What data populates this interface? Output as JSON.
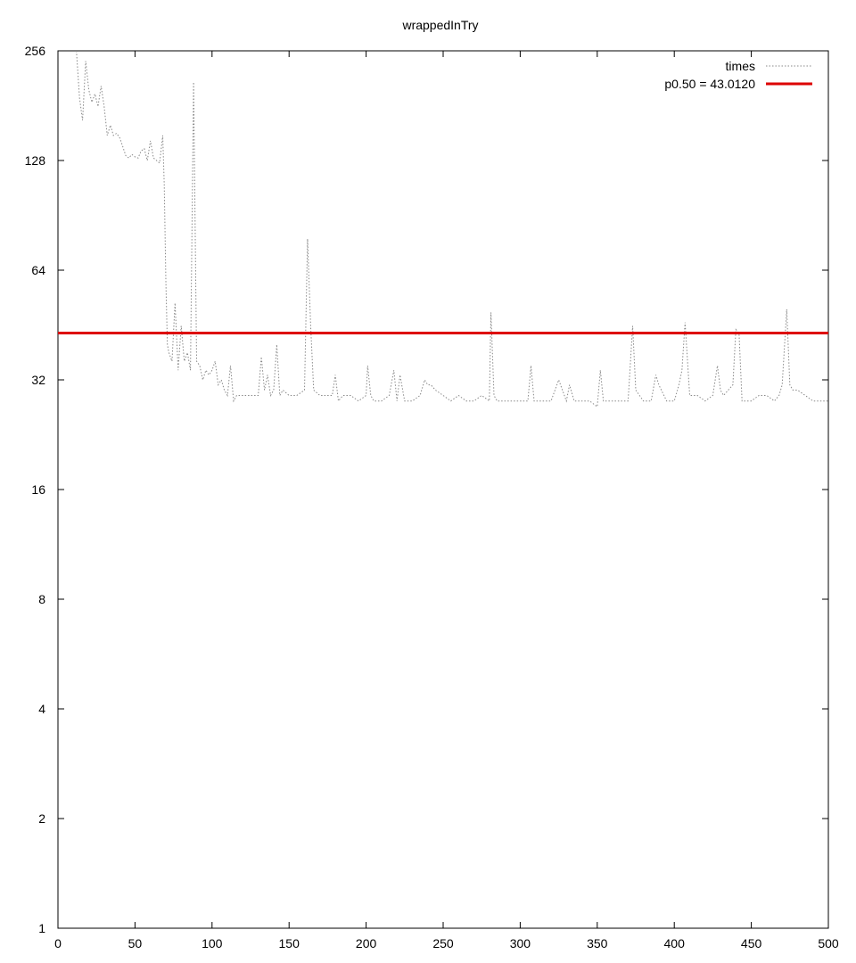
{
  "chart_data": {
    "type": "line",
    "title": "wrappedInTry",
    "xlabel": "",
    "ylabel": "",
    "xlim": [
      0,
      500
    ],
    "ylim": [
      1,
      256
    ],
    "yscale": "log2",
    "grid": false,
    "legend_position": "top-right",
    "x_ticks": [
      "0",
      "50",
      "100",
      "150",
      "200",
      "250",
      "300",
      "350",
      "400",
      "450",
      "500"
    ],
    "y_ticks": [
      "1",
      "2",
      "4",
      "8",
      "16",
      "32",
      "64",
      "128",
      "256"
    ],
    "colors": {
      "times": "#888888",
      "median": "#dd0000"
    },
    "series": [
      {
        "name": "times",
        "style": "dotted",
        "points": [
          [
            12,
            256
          ],
          [
            14,
            190
          ],
          [
            16,
            165
          ],
          [
            18,
            240
          ],
          [
            20,
            200
          ],
          [
            22,
            185
          ],
          [
            24,
            195
          ],
          [
            26,
            180
          ],
          [
            28,
            205
          ],
          [
            30,
            180
          ],
          [
            32,
            150
          ],
          [
            34,
            160
          ],
          [
            36,
            150
          ],
          [
            38,
            152
          ],
          [
            40,
            148
          ],
          [
            42,
            140
          ],
          [
            44,
            132
          ],
          [
            46,
            130
          ],
          [
            48,
            133
          ],
          [
            50,
            131
          ],
          [
            52,
            130
          ],
          [
            54,
            136
          ],
          [
            56,
            138
          ],
          [
            58,
            128
          ],
          [
            60,
            145
          ],
          [
            62,
            130
          ],
          [
            64,
            128
          ],
          [
            66,
            126
          ],
          [
            68,
            150
          ],
          [
            69,
            110
          ],
          [
            70,
            60
          ],
          [
            71,
            40
          ],
          [
            72,
            38
          ],
          [
            74,
            36
          ],
          [
            76,
            52
          ],
          [
            78,
            34
          ],
          [
            80,
            45
          ],
          [
            82,
            36
          ],
          [
            84,
            38
          ],
          [
            86,
            34
          ],
          [
            88,
            210
          ],
          [
            90,
            36
          ],
          [
            92,
            35
          ],
          [
            94,
            32
          ],
          [
            96,
            34
          ],
          [
            98,
            33
          ],
          [
            100,
            34
          ],
          [
            102,
            36
          ],
          [
            104,
            31
          ],
          [
            106,
            32
          ],
          [
            108,
            30
          ],
          [
            110,
            29
          ],
          [
            112,
            35
          ],
          [
            114,
            28
          ],
          [
            116,
            29
          ],
          [
            118,
            29
          ],
          [
            120,
            29
          ],
          [
            125,
            29
          ],
          [
            130,
            29
          ],
          [
            132,
            37
          ],
          [
            134,
            30
          ],
          [
            136,
            33
          ],
          [
            138,
            29
          ],
          [
            140,
            30
          ],
          [
            142,
            40
          ],
          [
            144,
            29
          ],
          [
            146,
            30
          ],
          [
            150,
            29
          ],
          [
            155,
            29
          ],
          [
            160,
            30
          ],
          [
            162,
            78
          ],
          [
            164,
            45
          ],
          [
            166,
            30
          ],
          [
            170,
            29
          ],
          [
            175,
            29
          ],
          [
            178,
            29
          ],
          [
            180,
            33
          ],
          [
            182,
            28
          ],
          [
            185,
            29
          ],
          [
            190,
            29
          ],
          [
            195,
            28
          ],
          [
            200,
            29
          ],
          [
            201,
            35
          ],
          [
            203,
            29
          ],
          [
            205,
            28
          ],
          [
            210,
            28
          ],
          [
            215,
            29
          ],
          [
            218,
            34
          ],
          [
            220,
            28
          ],
          [
            222,
            33
          ],
          [
            225,
            28
          ],
          [
            230,
            28
          ],
          [
            235,
            29
          ],
          [
            238,
            32
          ],
          [
            240,
            31
          ],
          [
            242,
            31
          ],
          [
            245,
            30
          ],
          [
            250,
            29
          ],
          [
            255,
            28
          ],
          [
            260,
            29
          ],
          [
            265,
            28
          ],
          [
            270,
            28
          ],
          [
            275,
            29
          ],
          [
            280,
            28
          ],
          [
            281,
            49
          ],
          [
            283,
            29
          ],
          [
            285,
            28
          ],
          [
            290,
            28
          ],
          [
            295,
            28
          ],
          [
            300,
            28
          ],
          [
            305,
            28
          ],
          [
            307,
            35
          ],
          [
            309,
            28
          ],
          [
            315,
            28
          ],
          [
            320,
            28
          ],
          [
            325,
            32
          ],
          [
            330,
            28
          ],
          [
            332,
            31
          ],
          [
            335,
            28
          ],
          [
            340,
            28
          ],
          [
            345,
            28
          ],
          [
            350,
            27
          ],
          [
            352,
            34
          ],
          [
            354,
            28
          ],
          [
            360,
            28
          ],
          [
            365,
            28
          ],
          [
            370,
            28
          ],
          [
            373,
            45
          ],
          [
            375,
            30
          ],
          [
            380,
            28
          ],
          [
            385,
            28
          ],
          [
            388,
            33
          ],
          [
            390,
            31
          ],
          [
            395,
            28
          ],
          [
            400,
            28
          ],
          [
            403,
            31
          ],
          [
            405,
            34
          ],
          [
            407,
            46
          ],
          [
            410,
            29
          ],
          [
            415,
            29
          ],
          [
            420,
            28
          ],
          [
            425,
            29
          ],
          [
            428,
            35
          ],
          [
            430,
            30
          ],
          [
            432,
            29
          ],
          [
            435,
            30
          ],
          [
            438,
            31
          ],
          [
            440,
            44
          ],
          [
            442,
            43
          ],
          [
            444,
            28
          ],
          [
            450,
            28
          ],
          [
            455,
            29
          ],
          [
            460,
            29
          ],
          [
            465,
            28
          ],
          [
            468,
            29
          ],
          [
            470,
            31
          ],
          [
            473,
            50
          ],
          [
            475,
            31
          ],
          [
            477,
            30
          ],
          [
            480,
            30
          ],
          [
            485,
            29
          ],
          [
            490,
            28
          ],
          [
            495,
            28
          ],
          [
            500,
            28
          ]
        ]
      },
      {
        "name": "p0.50 = 43.0120",
        "style": "solid",
        "value": 43.012
      }
    ]
  }
}
